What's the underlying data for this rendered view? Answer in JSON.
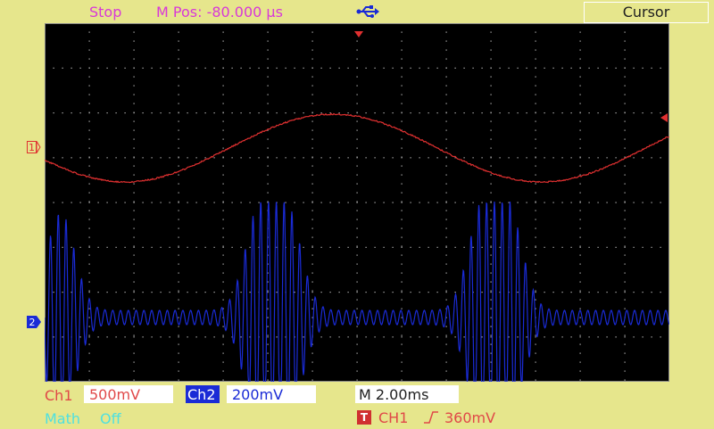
{
  "status": "Stop",
  "mpos": "M Pos: -80.000 µs",
  "menu": {
    "title": "Cursor"
  },
  "channels": {
    "ch1": {
      "label": "Ch1",
      "scale": "500mV",
      "marker": "1",
      "color": "#e03030"
    },
    "ch2": {
      "label": "Ch2",
      "scale": "200mV",
      "marker": "2",
      "color": "#1a2bd6"
    }
  },
  "timebase": "M 2.00ms",
  "math": {
    "label": "Math",
    "value": "Off"
  },
  "trigger": {
    "icon": "T",
    "source": "CH1",
    "slope": "rising-edge-icon",
    "slope_glyph": "⎍",
    "level": "360mV"
  },
  "icons": {
    "usb": "usb-icon"
  }
}
